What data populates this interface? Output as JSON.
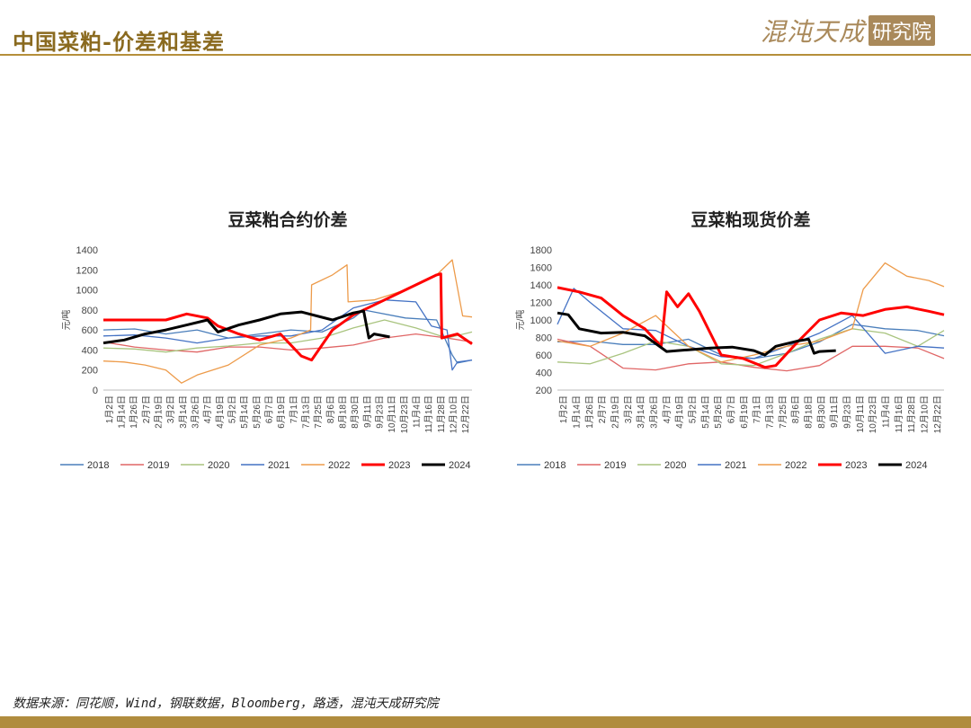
{
  "header": {
    "title": "中国菜粕-价差和基差"
  },
  "logo": {
    "name": "混沌天成",
    "box": "研究院"
  },
  "source": {
    "text": "数据来源：同花顺，Wind，钢联数据，Bloomberg，路透，混沌天成研究院"
  },
  "colors": {
    "2018": "#4a7ebb",
    "2019": "#e06666",
    "2020": "#a9c47f",
    "2021": "#4472c4",
    "2022": "#ed9b4a",
    "2023": "#ff0000",
    "2024": "#000000"
  },
  "chart_data": [
    {
      "type": "line",
      "title": "豆菜粕合约价差",
      "ylabel": "元/吨",
      "ylim": [
        0,
        1400
      ],
      "yticks": [
        0,
        200,
        400,
        600,
        800,
        1000,
        1200,
        1400
      ],
      "x_tick_labels": [
        "1月2日",
        "1月14日",
        "1月26日",
        "2月7日",
        "2月19日",
        "3月2日",
        "3月14日",
        "3月26日",
        "4月7日",
        "4月19日",
        "5月2日",
        "5月14日",
        "5月26日",
        "6月7日",
        "6月19日",
        "7月1日",
        "7月13日",
        "7月25日",
        "8月6日",
        "8月18日",
        "8月30日",
        "9月11日",
        "9月23日",
        "10月11日",
        "10月23日",
        "11月4日",
        "11月16日",
        "11月28日",
        "12月10日",
        "12月22日"
      ],
      "x_range": [
        0,
        354
      ],
      "legend_position": "bottom",
      "series": [
        {
          "name": "2018",
          "x": [
            0,
            30,
            60,
            90,
            120,
            150,
            180,
            210,
            240,
            250,
            260,
            290,
            320,
            335,
            340,
            354
          ],
          "values": [
            600,
            610,
            560,
            600,
            520,
            560,
            600,
            580,
            720,
            800,
            780,
            720,
            700,
            350,
            270,
            300
          ]
        },
        {
          "name": "2019",
          "x": [
            0,
            30,
            60,
            90,
            120,
            150,
            180,
            210,
            240,
            270,
            300,
            330,
            354
          ],
          "values": [
            480,
            430,
            400,
            380,
            430,
            430,
            400,
            420,
            450,
            520,
            560,
            520,
            480
          ]
        },
        {
          "name": "2020",
          "x": [
            0,
            30,
            60,
            90,
            120,
            150,
            180,
            210,
            240,
            270,
            300,
            330,
            354
          ],
          "values": [
            420,
            410,
            380,
            420,
            440,
            470,
            470,
            520,
            620,
            700,
            620,
            520,
            580
          ]
        },
        {
          "name": "2021",
          "x": [
            0,
            30,
            60,
            90,
            120,
            150,
            180,
            210,
            240,
            270,
            300,
            315,
            330,
            335,
            340,
            354
          ],
          "values": [
            540,
            550,
            520,
            470,
            520,
            540,
            540,
            600,
            820,
            900,
            880,
            640,
            600,
            200,
            280,
            300
          ]
        },
        {
          "name": "2022",
          "x": [
            0,
            20,
            40,
            60,
            75,
            90,
            120,
            150,
            180,
            199,
            200,
            220,
            234,
            235,
            260,
            290,
            320,
            335,
            345,
            354
          ],
          "values": [
            290,
            280,
            250,
            200,
            70,
            150,
            250,
            450,
            520,
            600,
            1050,
            1150,
            1250,
            880,
            900,
            1000,
            1150,
            1300,
            740,
            730
          ]
        },
        {
          "name": "2023",
          "x": [
            0,
            20,
            40,
            60,
            80,
            100,
            110,
            130,
            150,
            170,
            190,
            200,
            220,
            240,
            260,
            280,
            300,
            320,
            324,
            325,
            340,
            354
          ],
          "values": [
            700,
            700,
            700,
            700,
            760,
            720,
            640,
            560,
            500,
            560,
            340,
            300,
            600,
            750,
            850,
            950,
            1050,
            1150,
            1160,
            520,
            560,
            460
          ]
        },
        {
          "name": "2024",
          "x": [
            0,
            20,
            40,
            60,
            80,
            100,
            110,
            130,
            150,
            170,
            190,
            220,
            240,
            250,
            255,
            260,
            275
          ],
          "values": [
            470,
            500,
            560,
            600,
            650,
            700,
            580,
            650,
            700,
            760,
            780,
            700,
            770,
            790,
            520,
            560,
            530
          ]
        }
      ]
    },
    {
      "type": "line",
      "title": "豆菜粕现货价差",
      "ylabel": "元/吨",
      "ylim": [
        200,
        1800
      ],
      "yticks": [
        200,
        400,
        600,
        800,
        1000,
        1200,
        1400,
        1600,
        1800
      ],
      "x_tick_labels": [
        "1月2日",
        "1月14日",
        "1月26日",
        "2月7日",
        "2月19日",
        "3月2日",
        "3月14日",
        "3月26日",
        "4月7日",
        "4月19日",
        "5月2日",
        "5月14日",
        "5月26日",
        "6月7日",
        "6月19日",
        "7月1日",
        "7月13日",
        "7月25日",
        "8月6日",
        "8月18日",
        "8月30日",
        "9月11日",
        "9月23日",
        "10月11日",
        "10月23日",
        "11月4日",
        "11月16日",
        "11月28日",
        "12月10日",
        "12月22日"
      ],
      "x_range": [
        0,
        354
      ],
      "legend_position": "bottom",
      "series": [
        {
          "name": "2018",
          "x": [
            0,
            30,
            60,
            90,
            120,
            150,
            180,
            210,
            240,
            270,
            300,
            330,
            354
          ],
          "values": [
            750,
            760,
            720,
            720,
            780,
            600,
            560,
            620,
            750,
            950,
            900,
            880,
            820
          ]
        },
        {
          "name": "2019",
          "x": [
            0,
            30,
            60,
            90,
            120,
            150,
            180,
            210,
            240,
            270,
            300,
            330,
            354
          ],
          "values": [
            780,
            700,
            450,
            430,
            500,
            520,
            460,
            420,
            480,
            700,
            700,
            680,
            560
          ]
        },
        {
          "name": "2020",
          "x": [
            0,
            30,
            60,
            90,
            120,
            150,
            180,
            210,
            240,
            270,
            300,
            330,
            354
          ],
          "values": [
            520,
            500,
            620,
            760,
            700,
            500,
            480,
            620,
            780,
            900,
            850,
            700,
            880
          ]
        },
        {
          "name": "2021",
          "x": [
            0,
            15,
            30,
            60,
            90,
            120,
            150,
            180,
            210,
            240,
            270,
            300,
            330,
            354
          ],
          "values": [
            950,
            1360,
            1200,
            900,
            880,
            700,
            580,
            560,
            700,
            850,
            1050,
            620,
            700,
            680
          ]
        },
        {
          "name": "2022",
          "x": [
            0,
            30,
            60,
            90,
            120,
            150,
            180,
            210,
            240,
            270,
            280,
            300,
            320,
            340,
            354
          ],
          "values": [
            760,
            700,
            850,
            1050,
            700,
            520,
            600,
            700,
            760,
            900,
            1350,
            1650,
            1500,
            1450,
            1380
          ]
        },
        {
          "name": "2023",
          "x": [
            0,
            20,
            40,
            60,
            80,
            95,
            100,
            110,
            120,
            130,
            150,
            170,
            190,
            200,
            220,
            240,
            260,
            280,
            300,
            320,
            340,
            354
          ],
          "values": [
            1370,
            1320,
            1250,
            1050,
            900,
            700,
            1320,
            1150,
            1300,
            1100,
            600,
            560,
            460,
            480,
            750,
            1000,
            1080,
            1050,
            1120,
            1150,
            1100,
            1060
          ]
        },
        {
          "name": "2024",
          "x": [
            0,
            10,
            20,
            40,
            60,
            80,
            100,
            120,
            140,
            160,
            180,
            190,
            200,
            220,
            230,
            235,
            240,
            255
          ],
          "values": [
            1080,
            1060,
            900,
            850,
            860,
            820,
            640,
            660,
            680,
            690,
            650,
            600,
            700,
            760,
            780,
            620,
            640,
            650
          ]
        }
      ]
    }
  ]
}
